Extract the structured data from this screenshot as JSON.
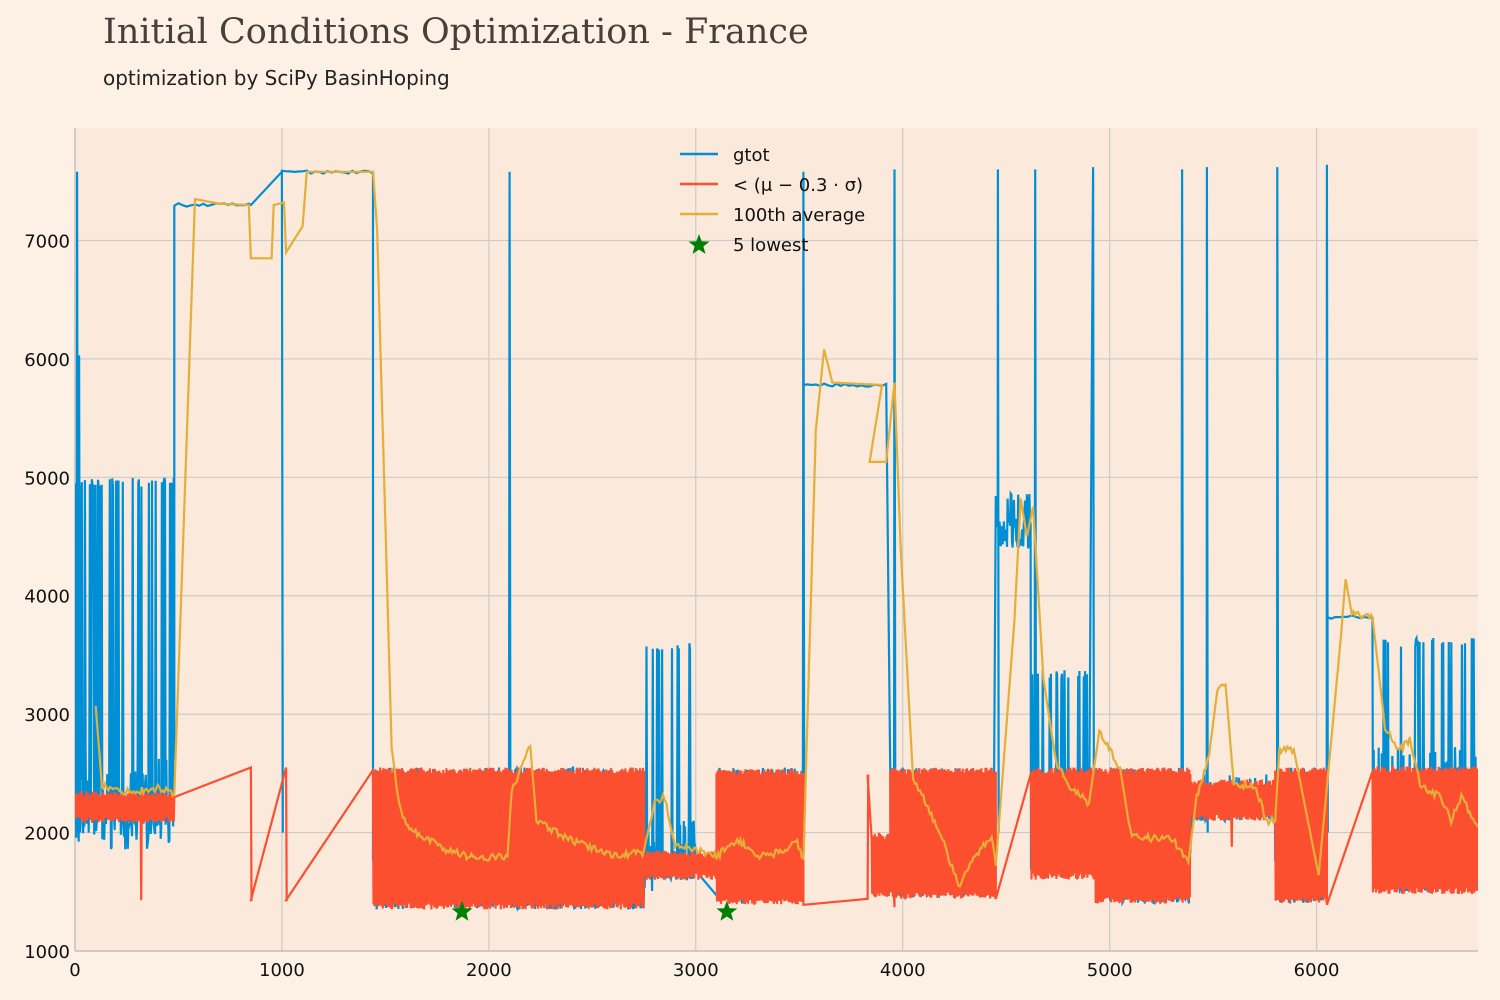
{
  "chart_data": {
    "type": "line",
    "title": "Initial Conditions Optimization - France",
    "subtitle": "optimization by SciPy BasinHoping",
    "xlim": [
      0,
      6780
    ],
    "ylim": [
      1000,
      7950
    ],
    "xticks": [
      0,
      1000,
      2000,
      3000,
      4000,
      5000,
      6000
    ],
    "yticks": [
      1000,
      2000,
      3000,
      4000,
      5000,
      6000,
      7000
    ],
    "grid": true,
    "legend_position": "top-center",
    "colors": {
      "gtot": "#008fd5",
      "threshold": "#fc4f30",
      "average": "#e5ae38",
      "lowest": "#008000",
      "background": "#fdf1e5",
      "plot_background": "#fbe9dc",
      "grid": "#cbcbcb"
    },
    "series": [
      {
        "name": "gtot",
        "style": "line",
        "noisy_segments": [
          {
            "x": [
              0,
              480
            ],
            "low": 2050,
            "high": 5000,
            "base": 2300
          },
          {
            "x": [
              1440,
              2750
            ],
            "low": 1350,
            "high": 2550,
            "base": 1900
          },
          {
            "x": [
              2750,
              3000
            ],
            "low": 1600,
            "high": 3600,
            "base": 1800
          },
          {
            "x": [
              3100,
              3520
            ],
            "low": 1400,
            "high": 2550,
            "base": 1800
          },
          {
            "x": [
              3940,
              4440
            ],
            "low": 1450,
            "high": 2550,
            "base": 1700
          },
          {
            "x": [
              4450,
              4620
            ],
            "low": 4400,
            "high": 4870,
            "base": 4600
          },
          {
            "x": [
              4620,
              4900
            ],
            "low": 1650,
            "high": 3380,
            "base": 2300
          },
          {
            "x": [
              4930,
              5390
            ],
            "low": 1400,
            "high": 2550,
            "base": 1900
          },
          {
            "x": [
              5400,
              5800
            ],
            "low": 2100,
            "high": 2500,
            "base": 2200
          },
          {
            "x": [
              5800,
              6050
            ],
            "low": 1400,
            "high": 2550,
            "base": 1900
          },
          {
            "x": [
              6270,
              6780
            ],
            "low": 1500,
            "high": 3650,
            "base": 2400
          }
        ],
        "plateaus": [
          {
            "x": [
              480,
              850
            ],
            "y": 7300
          },
          {
            "x": [
              1000,
              1440
            ],
            "y": 7580
          },
          {
            "x": [
              3520,
              3920
            ],
            "y": 5780
          },
          {
            "x": [
              6050,
              6270
            ],
            "y": 3820
          }
        ],
        "spikes": [
          {
            "x": 10,
            "y": 7580
          },
          {
            "x": 20,
            "y": 6030
          },
          {
            "x": 1000,
            "y": 7580
          },
          {
            "x": 2100,
            "y": 7580
          },
          {
            "x": 3520,
            "y": 7580
          },
          {
            "x": 3960,
            "y": 7600
          },
          {
            "x": 4460,
            "y": 7600
          },
          {
            "x": 4640,
            "y": 7600
          },
          {
            "x": 4920,
            "y": 7620
          },
          {
            "x": 5350,
            "y": 7600
          },
          {
            "x": 5470,
            "y": 7620
          },
          {
            "x": 5810,
            "y": 7620
          },
          {
            "x": 6050,
            "y": 7640
          }
        ]
      },
      {
        "name": "< (μ − 0.3 · σ)",
        "style": "line",
        "band_low": 1350,
        "band_high": 2550,
        "gap_points": [
          {
            "x": 480,
            "y": 2300
          },
          {
            "x": 850,
            "y": 1430
          },
          {
            "x": 1020,
            "y": 1430
          },
          {
            "x": 1440,
            "y": 2550
          },
          {
            "x": 3520,
            "y": 1390
          },
          {
            "x": 3830,
            "y": 2480
          },
          {
            "x": 4450,
            "y": 1440
          },
          {
            "x": 4620,
            "y": 1740
          },
          {
            "x": 6050,
            "y": 1390
          },
          {
            "x": 6270,
            "y": 1880
          }
        ]
      },
      {
        "name": "100th average",
        "style": "line",
        "points": [
          [
            100,
            3070
          ],
          [
            130,
            2400
          ],
          [
            200,
            2350
          ],
          [
            300,
            2350
          ],
          [
            400,
            2380
          ],
          [
            480,
            2330
          ],
          [
            580,
            7350
          ],
          [
            700,
            7310
          ],
          [
            840,
            7300
          ],
          [
            850,
            6850
          ],
          [
            950,
            6850
          ],
          [
            960,
            7300
          ],
          [
            1010,
            7320
          ],
          [
            1020,
            6900
          ],
          [
            1100,
            7120
          ],
          [
            1120,
            7580
          ],
          [
            1440,
            7580
          ],
          [
            1460,
            7100
          ],
          [
            1530,
            2720
          ],
          [
            1560,
            2300
          ],
          [
            1600,
            2050
          ],
          [
            1700,
            1950
          ],
          [
            1800,
            1850
          ],
          [
            1900,
            1800
          ],
          [
            2000,
            1790
          ],
          [
            2090,
            1800
          ],
          [
            2110,
            2350
          ],
          [
            2200,
            2730
          ],
          [
            2230,
            2100
          ],
          [
            2400,
            1930
          ],
          [
            2600,
            1810
          ],
          [
            2750,
            1830
          ],
          [
            2800,
            2250
          ],
          [
            2850,
            2300
          ],
          [
            2900,
            1900
          ],
          [
            3000,
            1850
          ],
          [
            3100,
            1800
          ],
          [
            3200,
            1940
          ],
          [
            3300,
            1800
          ],
          [
            3400,
            1830
          ],
          [
            3490,
            1920
          ],
          [
            3520,
            1780
          ],
          [
            3580,
            5400
          ],
          [
            3620,
            6080
          ],
          [
            3660,
            5800
          ],
          [
            3900,
            5780
          ],
          [
            3840,
            5130
          ],
          [
            3920,
            5130
          ],
          [
            3960,
            5800
          ],
          [
            3990,
            4400
          ],
          [
            4050,
            2450
          ],
          [
            4100,
            2300
          ],
          [
            4200,
            1900
          ],
          [
            4270,
            1540
          ],
          [
            4350,
            1800
          ],
          [
            4430,
            1980
          ],
          [
            4450,
            1720
          ],
          [
            4540,
            3800
          ],
          [
            4570,
            4820
          ],
          [
            4600,
            4500
          ],
          [
            4630,
            4750
          ],
          [
            4680,
            3300
          ],
          [
            4740,
            2600
          ],
          [
            4800,
            2400
          ],
          [
            4900,
            2250
          ],
          [
            4950,
            2850
          ],
          [
            5050,
            2550
          ],
          [
            5100,
            2000
          ],
          [
            5200,
            1950
          ],
          [
            5300,
            1950
          ],
          [
            5380,
            1750
          ],
          [
            5420,
            2300
          ],
          [
            5480,
            2650
          ],
          [
            5520,
            3200
          ],
          [
            5560,
            3250
          ],
          [
            5600,
            2400
          ],
          [
            5700,
            2400
          ],
          [
            5760,
            2100
          ],
          [
            5800,
            2100
          ],
          [
            5820,
            2700
          ],
          [
            5890,
            2700
          ],
          [
            6010,
            1640
          ],
          [
            6120,
            3700
          ],
          [
            6140,
            4140
          ],
          [
            6170,
            3850
          ],
          [
            6270,
            3820
          ],
          [
            6330,
            2900
          ],
          [
            6400,
            2700
          ],
          [
            6450,
            2780
          ],
          [
            6500,
            2400
          ],
          [
            6600,
            2300
          ],
          [
            6650,
            2100
          ],
          [
            6700,
            2300
          ],
          [
            6780,
            2050
          ]
        ]
      },
      {
        "name": "5 lowest",
        "style": "scatter",
        "marker": "star",
        "points": [
          [
            1870,
            1330
          ],
          [
            3150,
            1330
          ]
        ]
      }
    ],
    "legend": [
      {
        "label": "gtot",
        "kind": "line",
        "color": "#008fd5"
      },
      {
        "label": "< (μ − 0.3 · σ)",
        "kind": "line",
        "color": "#fc4f30"
      },
      {
        "label": "100th average",
        "kind": "line",
        "color": "#e5ae38"
      },
      {
        "label": "5 lowest",
        "kind": "star",
        "color": "#008000"
      }
    ]
  }
}
